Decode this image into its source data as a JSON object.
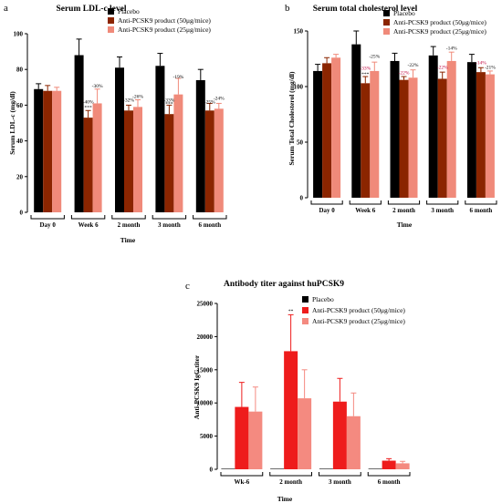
{
  "colors": {
    "placebo": "#000000",
    "anti50": "#8b2500",
    "anti25": "#f08a7a",
    "anti50_c": "#ee1c1c",
    "anti25_c": "#f48a80"
  },
  "chart_data": [
    {
      "type": "bar",
      "panel_label": "a",
      "title": "Serum LDL-c level",
      "xlabel": "Time",
      "ylabel": "Serum LDL-c (mg/dl)",
      "ylim": [
        0,
        100
      ],
      "yticks": [
        0,
        20,
        40,
        60,
        80,
        100
      ],
      "legend_position": "top-right",
      "categories": [
        "Day 0",
        "Week 6",
        "2 month",
        "3 month",
        "6 month"
      ],
      "series": [
        {
          "name": "Placebo",
          "values": [
            69,
            88,
            81,
            82,
            74
          ],
          "errors": [
            3,
            9,
            6,
            7,
            6
          ]
        },
        {
          "name": "Anti-PCSK9 product (50μg/mice)",
          "values": [
            68,
            53,
            57,
            55,
            57
          ],
          "errors": [
            3,
            4,
            3,
            5,
            4
          ]
        },
        {
          "name": "Anti-PCSK9 product (25μg/mice)",
          "values": [
            68,
            61,
            59,
            66,
            58
          ],
          "errors": [
            2,
            8,
            4,
            9,
            3
          ]
        }
      ],
      "annotations": [
        {
          "category": 1,
          "series": 1,
          "text": "***",
          "y": 58
        },
        {
          "category": 1,
          "series": 1,
          "text": "-40%",
          "y": 61
        },
        {
          "category": 1,
          "series": 2,
          "text": "-30%",
          "y": 70
        },
        {
          "category": 2,
          "series": 1,
          "text": "-32%",
          "y": 62
        },
        {
          "category": 2,
          "series": 2,
          "text": "-26%",
          "y": 64
        },
        {
          "category": 3,
          "series": 1,
          "text": "***",
          "y": 60
        },
        {
          "category": 3,
          "series": 1,
          "text": "-33%",
          "y": 62
        },
        {
          "category": 3,
          "series": 2,
          "text": "-19%",
          "y": 75
        },
        {
          "category": 4,
          "series": 1,
          "text": "-25%",
          "y": 61
        },
        {
          "category": 4,
          "series": 2,
          "text": "-24%",
          "y": 63
        }
      ]
    },
    {
      "type": "bar",
      "panel_label": "b",
      "title": "Serum total cholesterol level",
      "xlabel": "Time",
      "ylabel": "Serum Total Cholesterol (mg/dl)",
      "ylim": [
        0,
        150
      ],
      "yticks": [
        0,
        50,
        100,
        150
      ],
      "legend_position": "top-right",
      "categories": [
        "Day 0",
        "Week 6",
        "2 month",
        "3 month",
        "6 month"
      ],
      "series": [
        {
          "name": "Placebo",
          "values": [
            114,
            138,
            123,
            128,
            122
          ],
          "errors": [
            6,
            12,
            7,
            8,
            7
          ]
        },
        {
          "name": "Anti-PCSK9 product (50μg/mice)",
          "values": [
            121,
            103,
            106,
            107,
            113
          ],
          "errors": [
            5,
            6,
            3,
            6,
            4
          ]
        },
        {
          "name": "Anti-PCSK9 product (25μg/mice)",
          "values": [
            126,
            114,
            108,
            123,
            111
          ],
          "errors": [
            3,
            8,
            7,
            8,
            3
          ]
        }
      ],
      "annotations": [
        {
          "category": 1,
          "series": 1,
          "text": "***",
          "y": 110
        },
        {
          "category": 1,
          "series": 1,
          "text": "-33%",
          "y": 115
        },
        {
          "category": 1,
          "series": 2,
          "text": "-25%",
          "y": 126
        },
        {
          "category": 2,
          "series": 1,
          "text": "-22%",
          "y": 111
        },
        {
          "category": 2,
          "series": 2,
          "text": "-22%",
          "y": 118
        },
        {
          "category": 3,
          "series": 1,
          "text": "-22%",
          "y": 116
        },
        {
          "category": 3,
          "series": 2,
          "text": "-14%",
          "y": 133
        },
        {
          "category": 4,
          "series": 1,
          "text": "-14%",
          "y": 120
        },
        {
          "category": 4,
          "series": 2,
          "text": "-21%",
          "y": 116
        }
      ]
    },
    {
      "type": "bar",
      "panel_label": "c",
      "title": "Antibody titer against huPCSK9",
      "xlabel": "Time",
      "ylabel": "Anti-PCSK9 IgG  titer",
      "ylim": [
        0,
        25000
      ],
      "yticks": [
        0,
        5000,
        10000,
        15000,
        20000,
        25000
      ],
      "legend_position": "top-right",
      "categories": [
        "Wk-6",
        "2 month",
        "3 month",
        "6 month"
      ],
      "series": [
        {
          "name": "Placebo",
          "values": [
            80,
            80,
            80,
            80
          ],
          "errors": [
            0,
            0,
            0,
            0
          ]
        },
        {
          "name": "Anti-PCSK9 product (50μg/mice)",
          "values": [
            9400,
            17800,
            10200,
            1300
          ],
          "errors": [
            3700,
            5500,
            3500,
            300
          ]
        },
        {
          "name": "Anti-PCSK9 product (25μg/mice)",
          "values": [
            8700,
            10700,
            8000,
            900
          ],
          "errors": [
            3700,
            4300,
            3500,
            300
          ]
        }
      ],
      "annotations": [
        {
          "category": 1,
          "series": 1,
          "text": "**",
          "y": 23600
        }
      ]
    }
  ]
}
